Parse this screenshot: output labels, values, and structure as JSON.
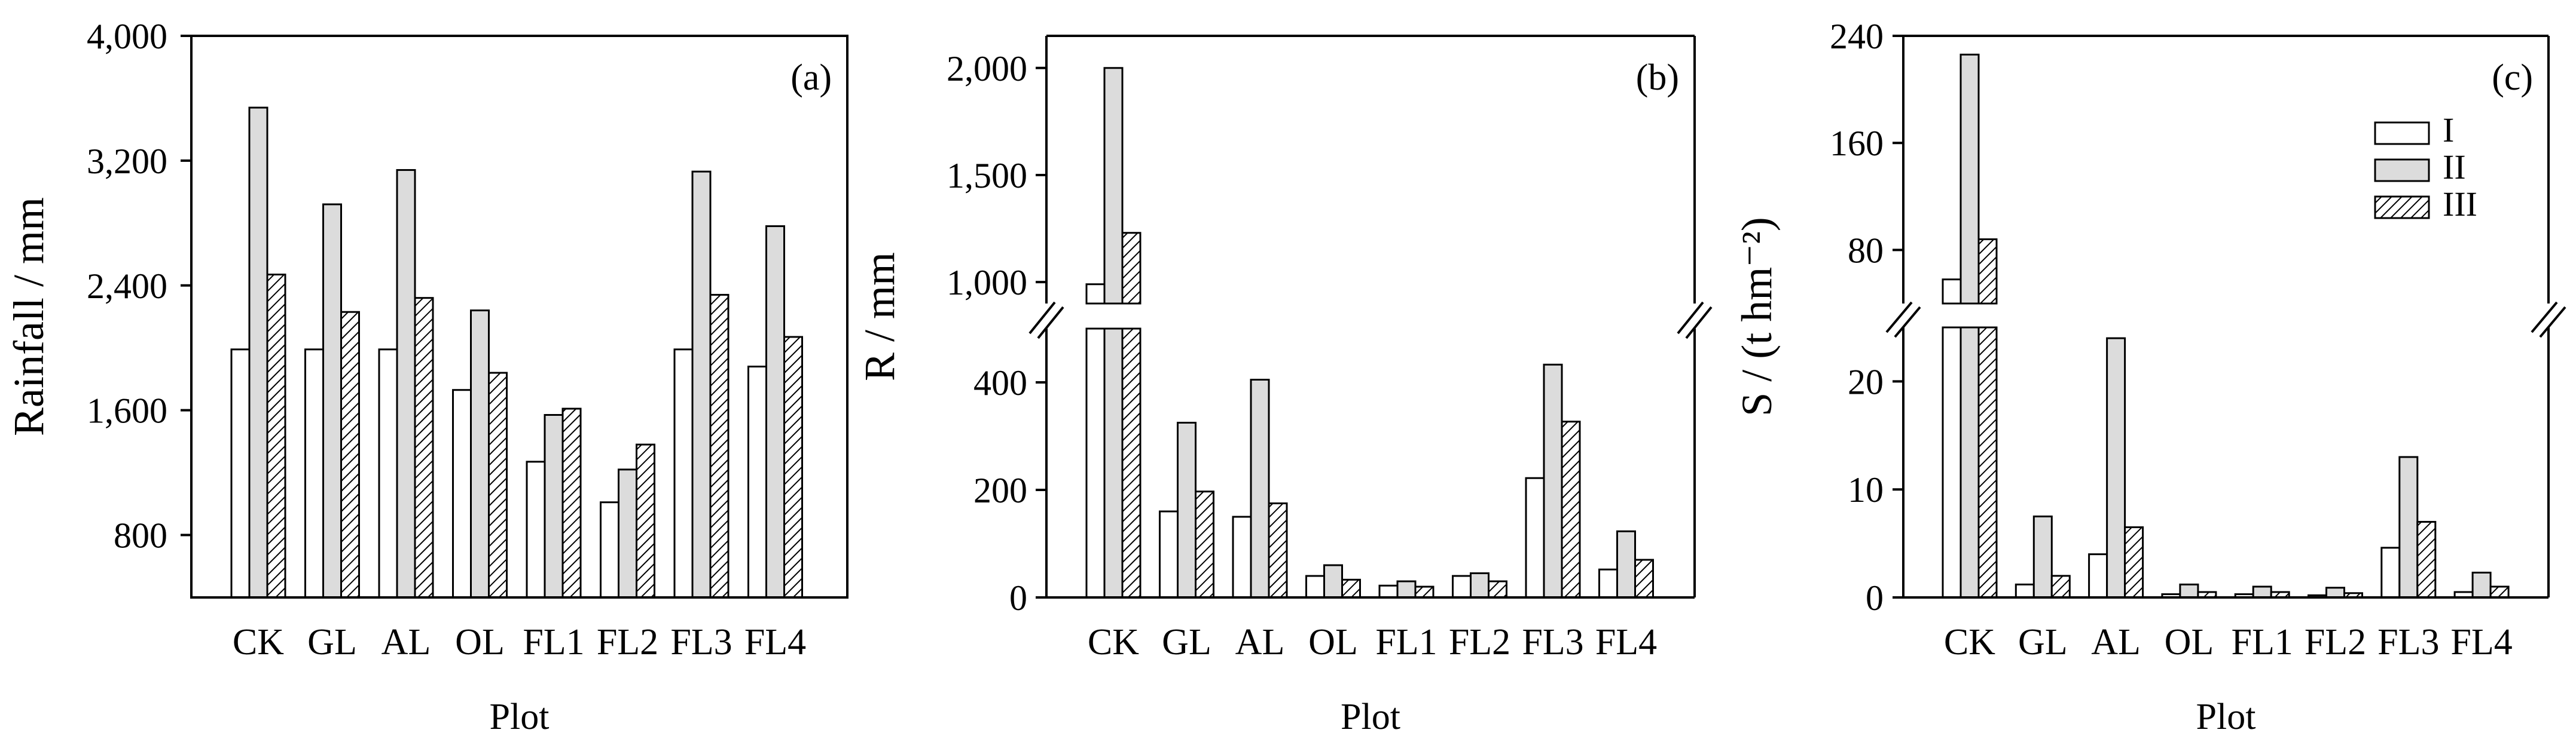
{
  "chart_data": [
    {
      "type": "bar",
      "panel_label": "(a)",
      "xlabel": "Plot",
      "ylabel": "Rainfall / mm",
      "categories": [
        "CK",
        "GL",
        "AL",
        "OL",
        "FL1",
        "FL2",
        "FL3",
        "FL4"
      ],
      "ylim": [
        400,
        4000
      ],
      "yticks": [
        800,
        1600,
        2400,
        3200,
        4000
      ],
      "ytick_labels": [
        "800",
        "1,600",
        "2,400",
        "3,200",
        "4,000"
      ],
      "series": [
        {
          "values": [
            1990,
            1990,
            1990,
            1730,
            1270,
            1010,
            1990,
            1880
          ]
        },
        {
          "values": [
            3540,
            2920,
            3140,
            2240,
            1570,
            1220,
            3130,
            2780
          ]
        },
        {
          "values": [
            2470,
            2230,
            2320,
            1840,
            1610,
            1380,
            2340,
            2070
          ]
        }
      ]
    },
    {
      "type": "bar",
      "panel_label": "(b)",
      "xlabel": "Plot",
      "ylabel": "R / mm",
      "categories": [
        "CK",
        "GL",
        "AL",
        "OL",
        "FL1",
        "FL2",
        "FL3",
        "FL4"
      ],
      "broken_axis": true,
      "ylim_lower": [
        0,
        500
      ],
      "ylim_upper": [
        900,
        2150
      ],
      "yticks": [
        0,
        200,
        400,
        1000,
        1500,
        2000
      ],
      "ytick_labels": [
        "0",
        "200",
        "400",
        "1,000",
        "1,500",
        "2,000"
      ],
      "series": [
        {
          "values": [
            990,
            160,
            150,
            40,
            22,
            40,
            222,
            52
          ]
        },
        {
          "values": [
            2000,
            325,
            405,
            60,
            30,
            45,
            433,
            123
          ]
        },
        {
          "values": [
            1230,
            197,
            175,
            33,
            20,
            30,
            327,
            70
          ]
        }
      ]
    },
    {
      "type": "bar",
      "panel_label": "(c)",
      "xlabel": "Plot",
      "ylabel": "S / (t hm⁻²)",
      "categories": [
        "CK",
        "GL",
        "AL",
        "OL",
        "FL1",
        "FL2",
        "FL3",
        "FL4"
      ],
      "broken_axis": true,
      "ylim_lower": [
        0,
        25
      ],
      "ylim_upper": [
        40,
        240
      ],
      "yticks": [
        0,
        10,
        20,
        80,
        160,
        240
      ],
      "ytick_labels": [
        "0",
        "10",
        "20",
        "80",
        "160",
        "240"
      ],
      "legend_position": "top-right",
      "legend": [
        "I",
        "II",
        "III"
      ],
      "series": [
        {
          "name": "I",
          "values": [
            58,
            1.2,
            4.0,
            0.3,
            0.3,
            0.2,
            4.6,
            0.5
          ]
        },
        {
          "name": "II",
          "values": [
            226,
            7.5,
            24.0,
            1.2,
            1.0,
            0.9,
            13.0,
            2.3
          ]
        },
        {
          "name": "III",
          "values": [
            88,
            2.0,
            6.5,
            0.5,
            0.5,
            0.4,
            7.0,
            1.0
          ]
        }
      ]
    }
  ]
}
